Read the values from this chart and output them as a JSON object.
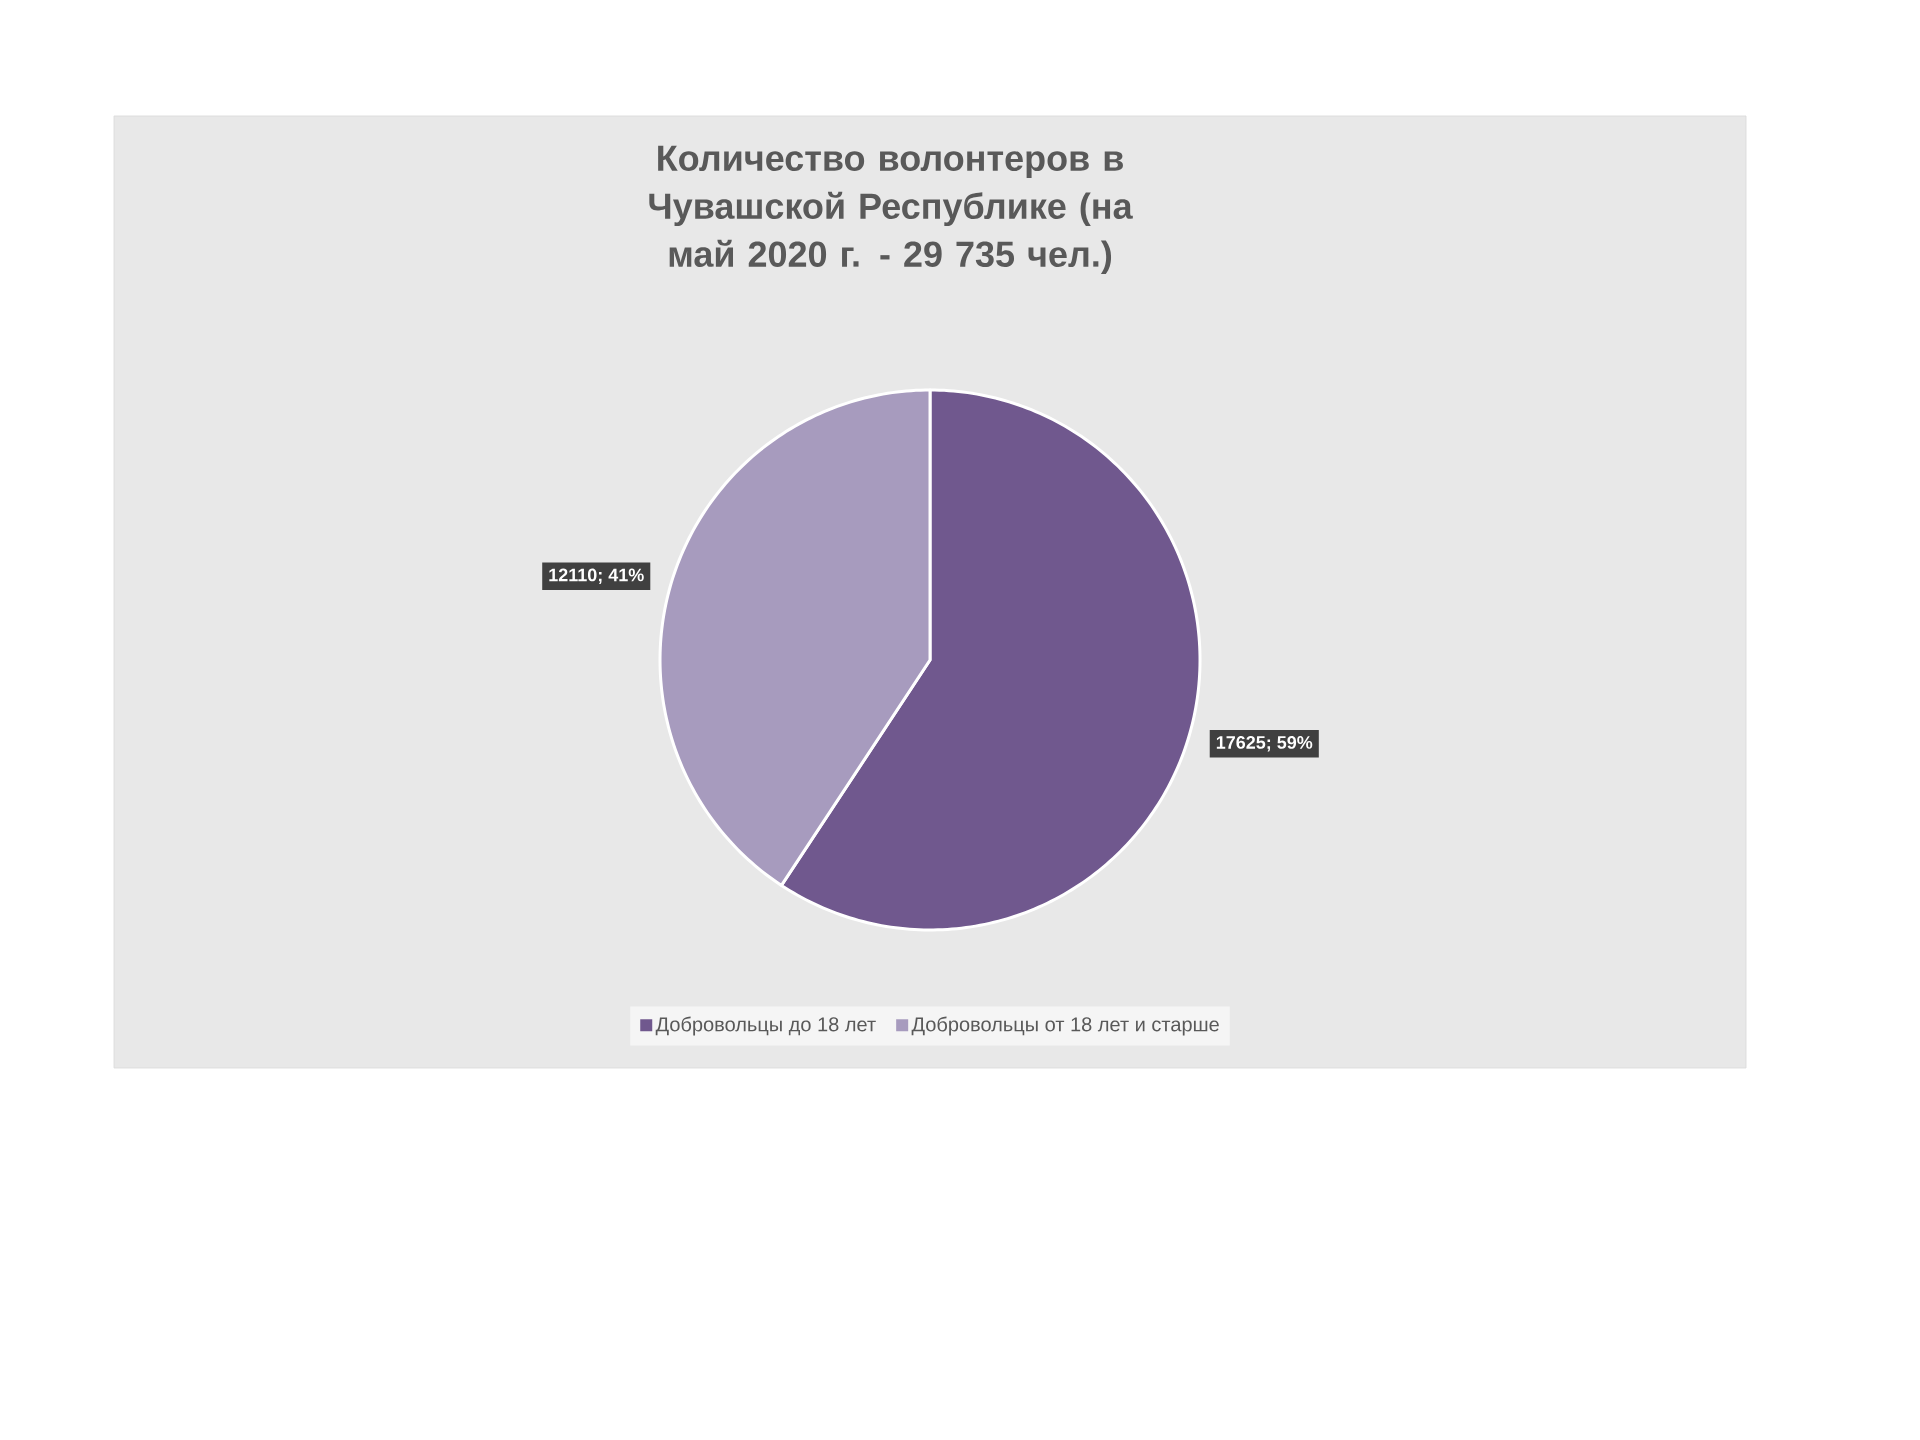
{
  "chart_data": {
    "type": "pie",
    "title": "Количество волонтеров в Чувашской Республике (на май 2020 г. - 29 735 чел.)",
    "categories": [
      "Добровольцы до 18 лет",
      "Добровольцы от 18 лет и старше"
    ],
    "values": [
      17625,
      12110
    ],
    "colors": [
      "#70588e",
      "#a79bbe"
    ],
    "value_labels": [
      "17625; 59%",
      "12110; 41%"
    ],
    "legend": "bottom"
  }
}
